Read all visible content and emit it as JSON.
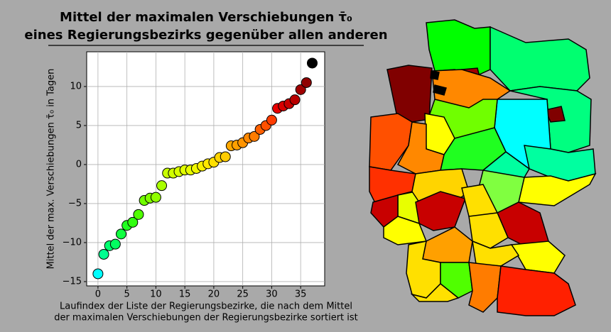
{
  "chart_data": {
    "type": "scatter",
    "title": [
      "Mittel der maximalen Verschiebungen τ̄₀",
      "eines Regierungsbezirks gegenüber allen anderen"
    ],
    "x_label": [
      "Laufindex der Liste der Regierungsbezirke, die nach dem Mittel",
      "der maximalen Verschiebungen der Regierungsbezirke sortiert ist"
    ],
    "y_label": "Mittel der max. Verschiebungen τ̄₀ in Tagen",
    "x": [
      0,
      1,
      2,
      3,
      4,
      5,
      6,
      7,
      8,
      9,
      10,
      11,
      12,
      13,
      14,
      15,
      16,
      17,
      18,
      19,
      20,
      21,
      22,
      23,
      24,
      25,
      26,
      27,
      28,
      29,
      30,
      31,
      32,
      33,
      34,
      35,
      36,
      37
    ],
    "values": [
      -14.0,
      -11.5,
      -10.4,
      -10.2,
      -8.9,
      -7.8,
      -7.4,
      -6.4,
      -4.6,
      -4.3,
      -4.2,
      -2.7,
      -1.1,
      -1.1,
      -0.9,
      -0.7,
      -0.7,
      -0.5,
      -0.2,
      0.1,
      0.3,
      0.9,
      1.0,
      2.4,
      2.5,
      2.8,
      3.4,
      3.6,
      4.5,
      5.0,
      5.7,
      7.2,
      7.5,
      7.8,
      8.3,
      9.6,
      10.5,
      13.0
    ],
    "colors": [
      "#00ffff",
      "#00ff90",
      "#00ff70",
      "#00ff60",
      "#10ff40",
      "#20ff20",
      "#30ff10",
      "#50ff00",
      "#70ff00",
      "#80ff00",
      "#90ff00",
      "#a8ff00",
      "#c8ff00",
      "#d0ff00",
      "#d8ff00",
      "#e0ff00",
      "#e8ff00",
      "#f0f800",
      "#f8f000",
      "#ffe800",
      "#ffe000",
      "#ffd400",
      "#ffcc00",
      "#ffa800",
      "#ffa000",
      "#ff9400",
      "#ff8800",
      "#ff7c00",
      "#ff6000",
      "#ff5000",
      "#ff3c00",
      "#e80000",
      "#d80000",
      "#c80000",
      "#b80000",
      "#a00000",
      "#900000",
      "#000000"
    ],
    "xlim": [
      -1.95,
      39.15
    ],
    "ylim": [
      -15.55,
      14.45
    ],
    "xticks": [
      0,
      5,
      10,
      15,
      20,
      25,
      30,
      35
    ],
    "yticks": [
      {
        "value": -15,
        "label": "−15"
      },
      {
        "value": -10,
        "label": "−10"
      },
      {
        "value": -5,
        "label": "−5"
      },
      0,
      5,
      10
    ],
    "grid": true
  }
}
